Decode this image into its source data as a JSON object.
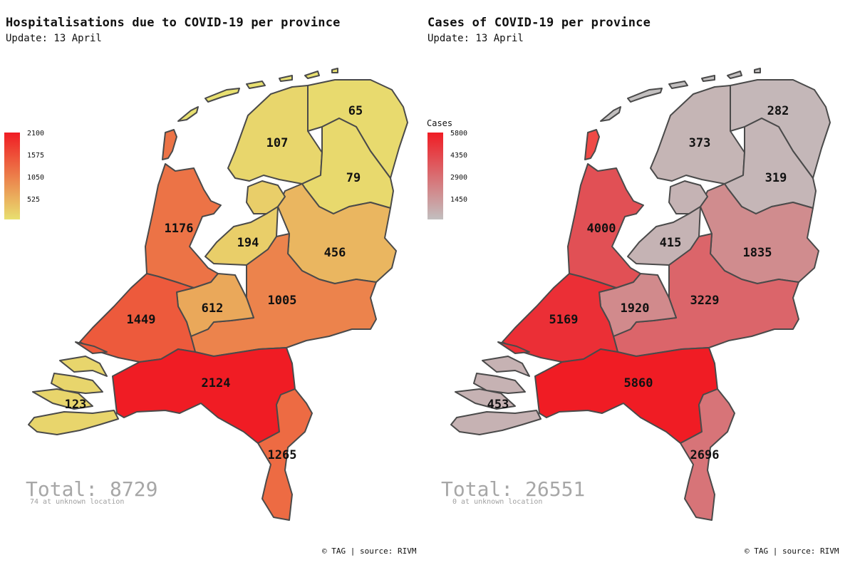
{
  "colors": {
    "low": "#e8e070",
    "high": "#f01c24",
    "grey": "#c2bfbf",
    "stroke": "#4a4a4a"
  },
  "panels": [
    {
      "title": "Hospitalisations due to COVID-19 per province",
      "subtitle": "Update: 13 April",
      "legend_title": "",
      "legend_ticks": [
        "2100",
        "1575",
        "1050",
        "525"
      ],
      "scale_low": "#e8e070",
      "scale_high": "#f01c24",
      "scale_min": 0,
      "scale_max": 2124,
      "total": "Total: 8729",
      "unknown": "74 at unknown location",
      "credit": "© TAG | source: RIVM",
      "provinces": {
        "groningen": {
          "name": "Groningen",
          "value": 65
        },
        "friesland": {
          "name": "Friesland",
          "value": 107
        },
        "drenthe": {
          "name": "Drenthe",
          "value": 79
        },
        "overijssel": {
          "name": "Overijssel",
          "value": 456
        },
        "flevoland": {
          "name": "Flevoland",
          "value": 194
        },
        "noord_holland": {
          "name": "Noord-Holland",
          "value": 1176
        },
        "gelderland": {
          "name": "Gelderland",
          "value": 1005
        },
        "utrecht": {
          "name": "Utrecht",
          "value": 612
        },
        "zuid_holland": {
          "name": "Zuid-Holland",
          "value": 1449
        },
        "noord_brabant": {
          "name": "Noord-Brabant",
          "value": 2124
        },
        "zeeland": {
          "name": "Zeeland",
          "value": 123
        },
        "limburg": {
          "name": "Limburg",
          "value": 1265
        }
      }
    },
    {
      "title": "Cases of COVID-19 per province",
      "subtitle": "Update: 13 April",
      "legend_title": "Cases",
      "legend_ticks": [
        "5800",
        "4350",
        "2900",
        "1450"
      ],
      "scale_low": "#c2bfbf",
      "scale_high": "#f01c24",
      "scale_min": 0,
      "scale_max": 5860,
      "total": "Total: 26551",
      "unknown": "0 at unknown location",
      "credit": "© TAG | source: RIVM",
      "provinces": {
        "groningen": {
          "name": "Groningen",
          "value": 282
        },
        "friesland": {
          "name": "Friesland",
          "value": 373
        },
        "drenthe": {
          "name": "Drenthe",
          "value": 319
        },
        "overijssel": {
          "name": "Overijssel",
          "value": 1835
        },
        "flevoland": {
          "name": "Flevoland",
          "value": 415
        },
        "noord_holland": {
          "name": "Noord-Holland",
          "value": 4000
        },
        "gelderland": {
          "name": "Gelderland",
          "value": 3229
        },
        "utrecht": {
          "name": "Utrecht",
          "value": 1920
        },
        "zuid_holland": {
          "name": "Zuid-Holland",
          "value": 5169
        },
        "noord_brabant": {
          "name": "Noord-Brabant",
          "value": 5860
        },
        "zeeland": {
          "name": "Zeeland",
          "value": 453
        },
        "limburg": {
          "name": "Limburg",
          "value": 2696
        }
      }
    }
  ]
}
